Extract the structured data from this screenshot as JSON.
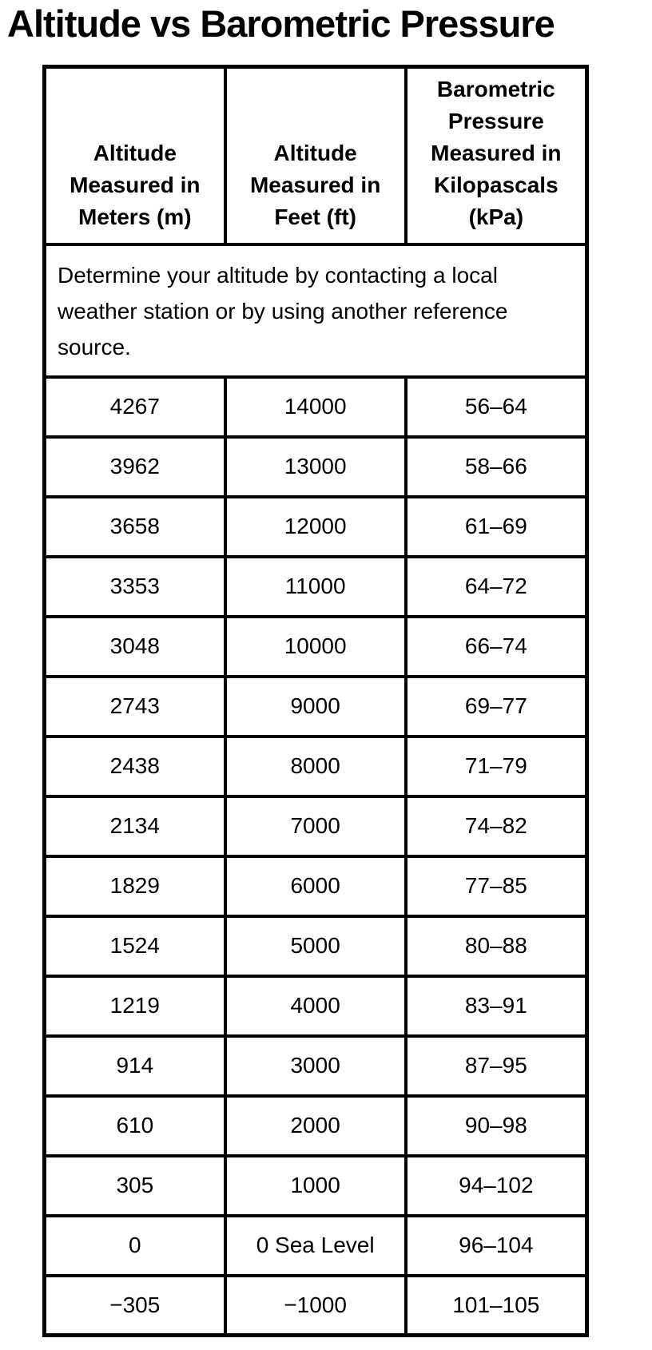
{
  "page": {
    "title": "Altitude vs Barometric Pressure"
  },
  "table": {
    "headers": {
      "meters": "Altitude\nMeasured in\nMeters (m)",
      "feet": "Altitude\nMeasured in\nFeet (ft)",
      "pressure": "Barometric\nPressure\nMeasured in\nKilopascals\n(kPa)"
    },
    "note": "Determine your altitude by contacting a local\nweather station or by using another reference\nsource.",
    "rows": [
      [
        "4267",
        "14000",
        "56–64"
      ],
      [
        "3962",
        "13000",
        "58–66"
      ],
      [
        "3658",
        "12000",
        "61–69"
      ],
      [
        "3353",
        "11000",
        "64–72"
      ],
      [
        "3048",
        "10000",
        "66–74"
      ],
      [
        "2743",
        "9000",
        "69–77"
      ],
      [
        "2438",
        "8000",
        "71–79"
      ],
      [
        "2134",
        "7000",
        "74–82"
      ],
      [
        "1829",
        "6000",
        "77–85"
      ],
      [
        "1524",
        "5000",
        "80–88"
      ],
      [
        "1219",
        "4000",
        "83–91"
      ],
      [
        "914",
        "3000",
        "87–95"
      ],
      [
        "610",
        "2000",
        "90–98"
      ],
      [
        "305",
        "1000",
        "94–102"
      ],
      [
        "0",
        "0 Sea Level",
        "96–104"
      ],
      [
        "−305",
        "−1000",
        "101–105"
      ]
    ]
  }
}
